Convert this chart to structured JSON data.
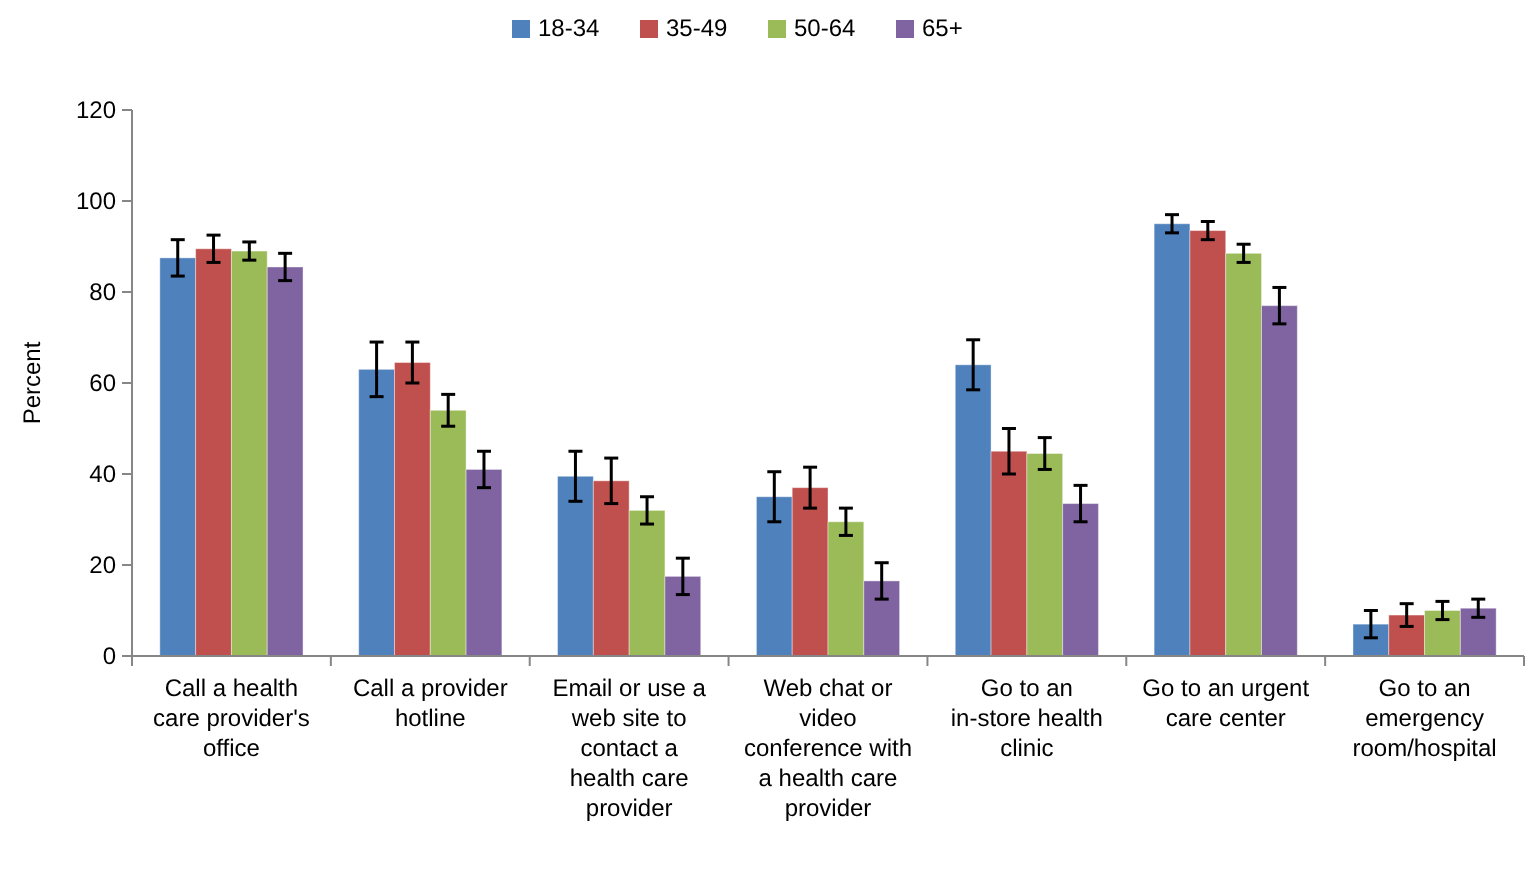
{
  "chart_data": {
    "type": "bar",
    "ylabel": "Percent",
    "categories": [
      "Call a health care provider's office",
      "Call a provider hotline",
      "Email or use a web site to contact a health care provider",
      "Web chat or video conference with a health care provider",
      "Go to an in-store health clinic",
      "Go to an urgent care center",
      "Go to an emergency room/hospital"
    ],
    "series": [
      {
        "name": "18-34",
        "color": "#4f81bd",
        "values": [
          87.5,
          63,
          39.5,
          35,
          64,
          95,
          7
        ],
        "errors": [
          4,
          6,
          5.5,
          5.5,
          5.5,
          2,
          3
        ]
      },
      {
        "name": "35-49",
        "color": "#c0504d",
        "values": [
          89.5,
          64.5,
          38.5,
          37,
          45,
          93.5,
          9
        ],
        "errors": [
          3,
          4.5,
          5,
          4.5,
          5,
          2,
          2.5
        ]
      },
      {
        "name": "50-64",
        "color": "#9bbb59",
        "values": [
          89,
          54,
          32,
          29.5,
          44.5,
          88.5,
          10
        ],
        "errors": [
          2,
          3.5,
          3,
          3,
          3.5,
          2,
          2
        ]
      },
      {
        "name": "65+",
        "color": "#8064a2",
        "values": [
          85.5,
          41,
          17.5,
          16.5,
          33.5,
          77,
          10.5
        ],
        "errors": [
          3,
          4,
          4,
          4,
          4,
          4,
          2
        ]
      }
    ],
    "ylim": [
      0,
      120
    ],
    "yticks": [
      0,
      20,
      40,
      60,
      80,
      100,
      120
    ],
    "grid": false,
    "legend": "top"
  }
}
